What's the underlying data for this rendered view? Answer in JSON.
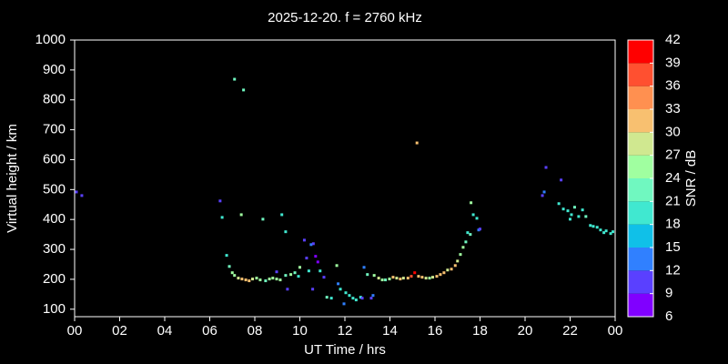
{
  "chart_data": {
    "type": "scatter",
    "title": "2025-12-20. f = 2760 kHz",
    "x_label": "UT Time / hrs",
    "y_label": "Virtual height / km",
    "color_label": "SNR / dB",
    "xlim": [
      0,
      24
    ],
    "xticks": [
      {
        "value": 0,
        "label": "00"
      },
      {
        "value": 2,
        "label": "02"
      },
      {
        "value": 4,
        "label": "04"
      },
      {
        "value": 6,
        "label": "06"
      },
      {
        "value": 8,
        "label": "08"
      },
      10,
      12,
      14,
      16,
      18,
      20,
      22,
      {
        "value": 24,
        "label": "00"
      }
    ],
    "ylim": [
      75,
      1000
    ],
    "yticks": [
      100,
      200,
      300,
      400,
      500,
      600,
      700,
      800,
      900,
      1000
    ],
    "clim": [
      6,
      42
    ],
    "cticks": [
      6,
      9,
      12,
      15,
      18,
      21,
      24,
      27,
      30,
      33,
      36,
      39,
      42
    ],
    "colors": [
      "#8000ff",
      "#5a40ff",
      "#3080ff",
      "#10c0e8",
      "#40e8d0",
      "#70f8c0",
      "#a0ffa0",
      "#d0e890",
      "#f8c070",
      "#ff9050",
      "#ff5030",
      "#ff0000"
    ],
    "x": [
      0.08,
      0.32,
      6.46,
      6.55,
      6.75,
      6.87,
      7.0,
      7.1,
      7.27,
      7.43,
      7.1,
      7.5,
      7.4,
      7.6,
      7.75,
      7.9,
      8.08,
      8.24,
      8.36,
      8.48,
      8.65,
      8.8,
      8.97,
      9.13,
      8.97,
      9.2,
      9.37,
      9.37,
      9.45,
      9.6,
      9.78,
      9.94,
      10.0,
      10.2,
      10.3,
      10.5,
      10.6,
      10.4,
      10.57,
      10.7,
      10.8,
      10.9,
      11.07,
      11.2,
      11.4,
      11.64,
      11.7,
      11.8,
      11.96,
      12.04,
      12.2,
      12.36,
      12.5,
      12.7,
      12.77,
      12.85,
      13.0,
      13.17,
      13.25,
      13.3,
      13.5,
      13.66,
      13.8,
      13.98,
      14.14,
      14.3,
      14.46,
      14.6,
      14.8,
      14.95,
      15.1,
      15.2,
      15.27,
      15.43,
      15.6,
      15.76,
      15.9,
      16.08,
      16.24,
      16.4,
      16.56,
      16.73,
      16.9,
      17.0,
      17.13,
      17.25,
      17.37,
      17.45,
      17.57,
      17.6,
      17.7,
      17.86,
      17.94,
      18.0,
      20.77,
      20.93,
      20.85,
      21.5,
      21.6,
      21.7,
      21.9,
      22.0,
      22.06,
      22.2,
      22.38,
      22.55,
      22.7,
      22.9,
      23.03,
      23.2,
      23.35,
      23.5,
      23.6,
      23.8,
      23.9
    ],
    "y": [
      492,
      480,
      462,
      407,
      280,
      243,
      222,
      213,
      204,
      201,
      869,
      833,
      416,
      198,
      195,
      201,
      204,
      198,
      401,
      195,
      201,
      204,
      201,
      198,
      225,
      416,
      359,
      213,
      167,
      216,
      222,
      210,
      240,
      331,
      271,
      316,
      319,
      228,
      167,
      277,
      258,
      228,
      207,
      140,
      137,
      246,
      185,
      167,
      118,
      155,
      146,
      137,
      131,
      140,
      137,
      240,
      216,
      137,
      146,
      213,
      204,
      198,
      198,
      201,
      207,
      204,
      201,
      204,
      204,
      210,
      222,
      656,
      210,
      207,
      204,
      204,
      207,
      210,
      216,
      222,
      231,
      234,
      246,
      261,
      283,
      307,
      325,
      356,
      350,
      456,
      416,
      404,
      365,
      368,
      480,
      574,
      492,
      453,
      532,
      435,
      429,
      401,
      416,
      441,
      410,
      432,
      410,
      380,
      377,
      374,
      365,
      356,
      362,
      353,
      359
    ],
    "snr": [
      10,
      10,
      10,
      20,
      20,
      22,
      24,
      26,
      28,
      30,
      22,
      22,
      24,
      31,
      30,
      28,
      26,
      24,
      22,
      22,
      24,
      26,
      26,
      24,
      10,
      20,
      20,
      22,
      10,
      24,
      22,
      20,
      24,
      10,
      10,
      12,
      10,
      18,
      10,
      8,
      8,
      20,
      10,
      22,
      20,
      24,
      12,
      20,
      12,
      18,
      20,
      18,
      20,
      18,
      10,
      12,
      22,
      10,
      12,
      24,
      28,
      26,
      22,
      26,
      30,
      28,
      30,
      28,
      30,
      38,
      40,
      30,
      32,
      30,
      28,
      26,
      28,
      30,
      32,
      30,
      28,
      30,
      30,
      28,
      26,
      24,
      22,
      20,
      22,
      24,
      18,
      18,
      12,
      10,
      10,
      10,
      12,
      18,
      10,
      20,
      20,
      18,
      20,
      22,
      18,
      20,
      22,
      20,
      20,
      18,
      20,
      18,
      20,
      18,
      20
    ]
  }
}
